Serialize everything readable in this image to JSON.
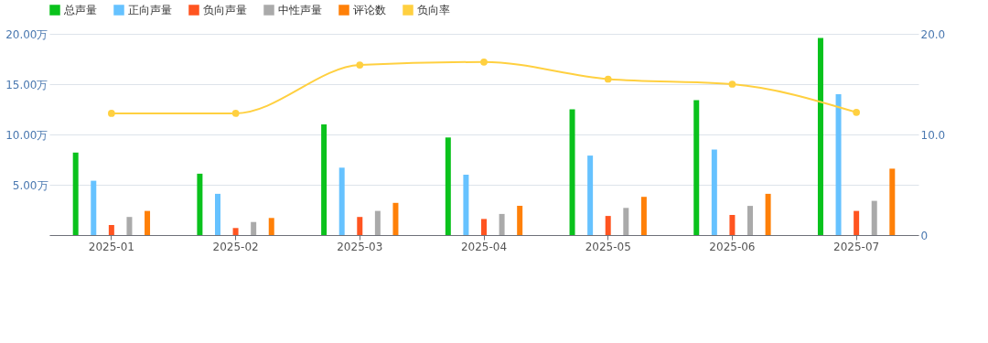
{
  "chart_data": {
    "type": "bar",
    "categories": [
      "2025-01",
      "2025-02",
      "2025-03",
      "2025-04",
      "2025-05",
      "2025-06",
      "2025-07"
    ],
    "series": [
      {
        "name": "总声量",
        "color": "#0ac21c",
        "values": [
          8.2,
          6.1,
          11.0,
          9.7,
          12.5,
          13.4,
          19.6
        ]
      },
      {
        "name": "正向声量",
        "color": "#66c2ff",
        "values": [
          5.4,
          4.1,
          6.7,
          6.0,
          7.9,
          8.5,
          14.0
        ]
      },
      {
        "name": "负向声量",
        "color": "#ff5420",
        "values": [
          1.0,
          0.7,
          1.8,
          1.6,
          1.9,
          2.0,
          2.4
        ]
      },
      {
        "name": "中性声量",
        "color": "#aaaaaa",
        "values": [
          1.8,
          1.3,
          2.4,
          2.1,
          2.7,
          2.9,
          3.4
        ]
      },
      {
        "name": "评论数",
        "color": "#ff8008",
        "values": [
          2.4,
          1.7,
          3.2,
          2.9,
          3.8,
          4.1,
          6.6
        ]
      },
      {
        "name": "负向率",
        "color": "#ffd040",
        "type": "line",
        "axis": "y2",
        "values": [
          12.1,
          12.1,
          16.9,
          17.2,
          15.5,
          15.0,
          12.2
        ]
      }
    ],
    "ylim": [
      0,
      20
    ],
    "yticks": [
      {
        "value": 0,
        "label": null
      },
      {
        "value": 5,
        "label": "5.00万"
      },
      {
        "value": 10,
        "label": "10.00万"
      },
      {
        "value": 15,
        "label": "15.00万"
      },
      {
        "value": 20,
        "label": "20.00万"
      }
    ],
    "y2lim": [
      0,
      20
    ],
    "y2ticks": [
      {
        "value": 0,
        "label": "0"
      },
      {
        "value": 10,
        "label": "10.0"
      },
      {
        "value": 20,
        "label": "20.0"
      }
    ],
    "grid": "y",
    "legend": "top",
    "marker": "circle",
    "line_style": "solid"
  }
}
